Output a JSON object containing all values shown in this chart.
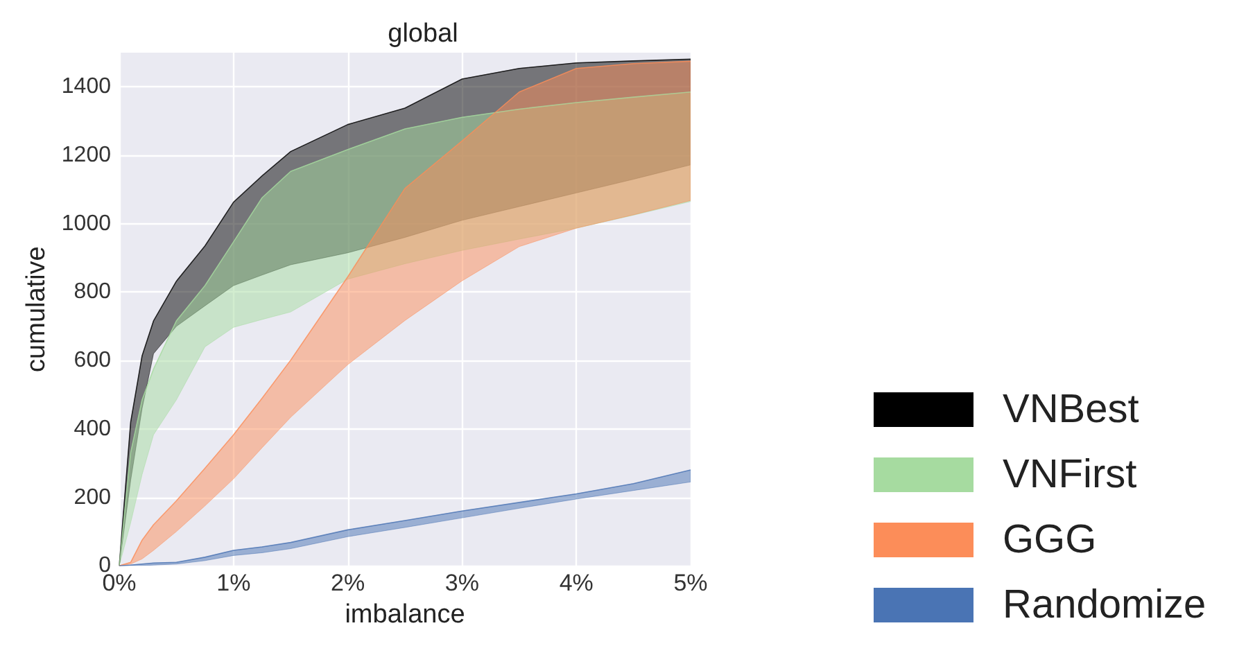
{
  "chart_data": {
    "type": "line",
    "title": "global",
    "xlabel": "imbalance",
    "ylabel": "cumulative",
    "x": [
      0,
      0.1,
      0.2,
      0.3,
      0.5,
      0.75,
      1,
      1.25,
      1.5,
      2,
      2.5,
      3,
      3.5,
      4,
      4.5,
      5
    ],
    "series": [
      {
        "name": "VNBest",
        "color": "#000000",
        "lower": [
          0,
          250,
          460,
          620,
          700,
          760,
          819,
          850,
          880,
          915,
          960,
          1010,
          1050,
          1090,
          1130,
          1172
        ],
        "upper": [
          0,
          420,
          614,
          716,
          832,
          935,
          1063,
          1140,
          1211,
          1290,
          1338,
          1423,
          1454,
          1470,
          1476,
          1481
        ],
        "values": [
          0,
          420,
          614,
          716,
          832,
          935,
          1063,
          1140,
          1211,
          1290,
          1338,
          1423,
          1454,
          1470,
          1476,
          1481
        ]
      },
      {
        "name": "VNFirst",
        "color": "#a6dba0",
        "lower": [
          0,
          126,
          267,
          383,
          485,
          640,
          697,
          720,
          742,
          838,
          883,
          922,
          955,
          987,
          1025,
          1065
        ],
        "upper": [
          0,
          331,
          485,
          575,
          716,
          819,
          947,
          1076,
          1153,
          1217,
          1277,
          1311,
          1335,
          1354,
          1370,
          1385
        ],
        "values": [
          0,
          331,
          485,
          575,
          716,
          819,
          947,
          1076,
          1153,
          1217,
          1277,
          1311,
          1335,
          1354,
          1370,
          1385
        ]
      },
      {
        "name": "GGG",
        "color": "#fc8d59",
        "lower": [
          0,
          5,
          20,
          45,
          100,
          175,
          254,
          345,
          434,
          588,
          717,
          833,
          933,
          987,
          1026,
          1068
        ],
        "upper": [
          0,
          10,
          75,
          120,
          190,
          285,
          383,
          490,
          601,
          845,
          1103,
          1242,
          1385,
          1454,
          1468,
          1475
        ],
        "values": [
          0,
          10,
          75,
          120,
          190,
          285,
          383,
          490,
          601,
          845,
          1103,
          1242,
          1385,
          1454,
          1468,
          1475
        ]
      },
      {
        "name": "Randomize",
        "color": "#4a74b4",
        "lower": [
          0,
          0,
          0,
          2,
          5,
          15,
          30,
          38,
          50,
          85,
          112,
          140,
          168,
          195,
          220,
          245
        ],
        "upper": [
          0,
          2,
          5,
          8,
          10,
          25,
          45,
          55,
          68,
          105,
          132,
          160,
          185,
          210,
          240,
          280
        ],
        "values": [
          0,
          2,
          5,
          8,
          10,
          25,
          45,
          55,
          68,
          105,
          132,
          160,
          185,
          210,
          240,
          280
        ]
      }
    ],
    "xlim": [
      0,
      5
    ],
    "xticks": [
      {
        "value": 0,
        "label": "0%"
      },
      {
        "value": 1,
        "label": "1%"
      },
      {
        "value": 2,
        "label": "2%"
      },
      {
        "value": 3,
        "label": "3%"
      },
      {
        "value": 4,
        "label": "4%"
      },
      {
        "value": 5,
        "label": "5%"
      }
    ],
    "ylim": [
      0,
      1500
    ],
    "yticks": [
      0,
      200,
      400,
      600,
      800,
      1000,
      1200,
      1400
    ],
    "grid": true,
    "legend": "right"
  }
}
